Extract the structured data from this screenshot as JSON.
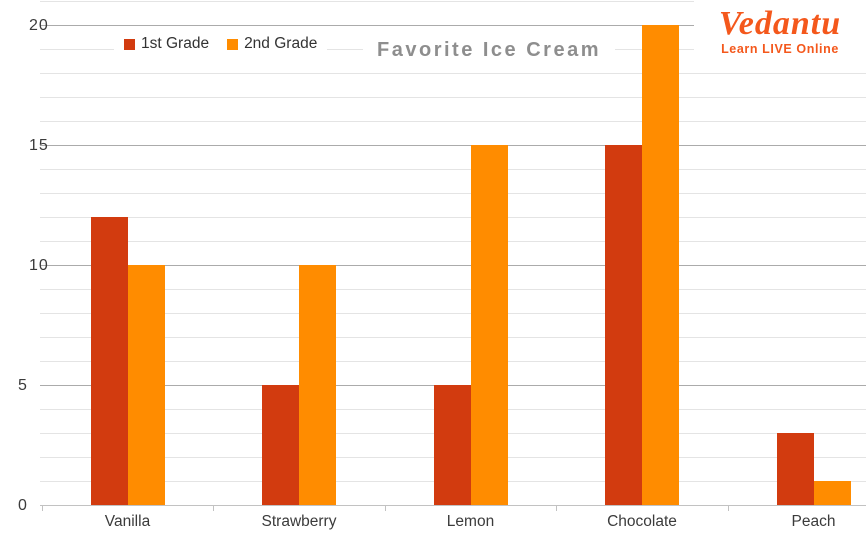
{
  "brand": {
    "name": "Vedantu",
    "tagline": "Learn LIVE Online",
    "color": "#f4581c"
  },
  "chart_data": {
    "type": "bar",
    "title": "Favorite Ice Cream",
    "categories": [
      "Vanilla",
      "Strawberry",
      "Lemon",
      "Chocolate",
      "Peach"
    ],
    "series": [
      {
        "name": "1st Grade",
        "color": "#d23b0f",
        "values": [
          12,
          5,
          5,
          15,
          3
        ]
      },
      {
        "name": "2nd Grade",
        "color": "#ff8c00",
        "values": [
          10,
          10,
          15,
          20,
          1
        ]
      }
    ],
    "xlabel": "",
    "ylabel": "",
    "ylim": [
      0,
      21
    ],
    "y_major_ticks": [
      0,
      5,
      10,
      15,
      20
    ],
    "y_minor_step": 1,
    "grid": "horizontal; minor line every 1 unit, major line every 5 units",
    "legend_position": "top-left"
  },
  "style_colors": {
    "grid_minor": "#e4e4e4",
    "grid_major": "#ababab",
    "axis": "#c2c2c2",
    "axis_text": "#3b3b3b",
    "title_text": "#8e8e8e",
    "legend_text": "#333333",
    "background": "#ffffff"
  }
}
